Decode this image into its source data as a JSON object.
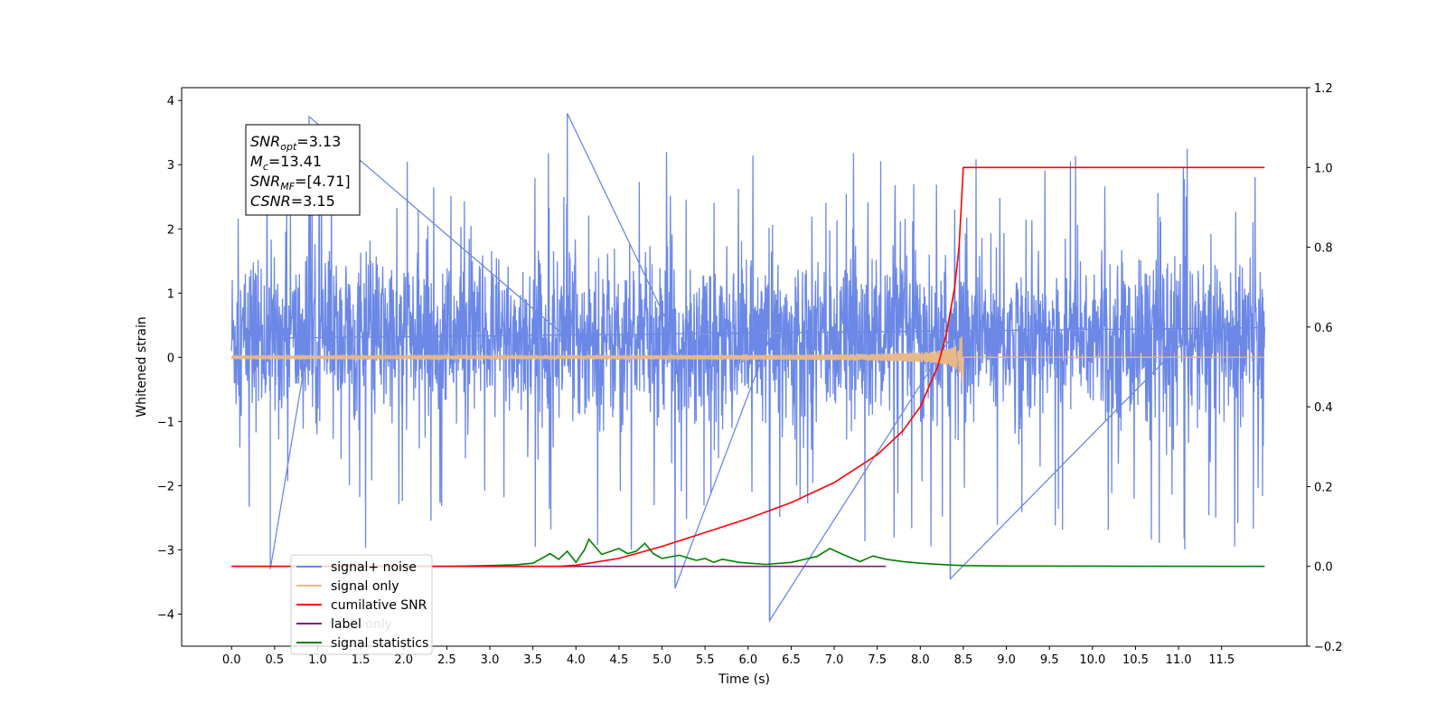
{
  "chart_data": {
    "type": "line",
    "title": "",
    "xlabel": "Time (s)",
    "ylabel": "Whitened strain",
    "y2label": "",
    "xlim": [
      -0.58,
      12.49
    ],
    "ylim": [
      -4.5,
      4.2
    ],
    "y2lim": [
      -0.2,
      1.2
    ],
    "x_ticks": [
      0.0,
      0.5,
      1.0,
      1.5,
      2.0,
      2.5,
      3.0,
      3.5,
      4.0,
      4.5,
      5.0,
      5.5,
      6.0,
      6.5,
      7.0,
      7.5,
      8.0,
      8.5,
      9.0,
      9.5,
      10.0,
      10.5,
      11.0,
      11.5
    ],
    "x_tick_labels": [
      "0.0",
      "0.5",
      "1.0",
      "1.5",
      "2.0",
      "2.5",
      "3.0",
      "3.5",
      "4.0",
      "4.5",
      "5.0",
      "5.5",
      "6.0",
      "6.5",
      "7.0",
      "7.5",
      "8.0",
      "8.5",
      "9.0",
      "9.5",
      "10.0",
      "10.5",
      "11.0",
      "11.5"
    ],
    "y_ticks": [
      -4,
      -3,
      -2,
      -1,
      0,
      1,
      2,
      3,
      4
    ],
    "y_tick_labels": [
      "−4",
      "−3",
      "−2",
      "−1",
      "0",
      "1",
      "2",
      "3",
      "4"
    ],
    "y2_ticks": [
      -0.2,
      0.0,
      0.2,
      0.4,
      0.6,
      0.8,
      1.0,
      1.2
    ],
    "y2_tick_labels": [
      "−0.2",
      "0.0",
      "0.2",
      "0.4",
      "0.6",
      "0.8",
      "1.0",
      "1.2"
    ],
    "grid": false,
    "legend_position": "lower-left",
    "series": [
      {
        "name": "signal+ noise",
        "color": "#6b88e6",
        "axis": "left",
        "description": "dense noise from t=0 to t=12",
        "x_range": [
          0,
          12
        ],
        "typical_envelope": [
          -1.6,
          2.4
        ],
        "peaks": [
          {
            "x": 0.45,
            "y": -3.3
          },
          {
            "x": 0.9,
            "y": 3.75
          },
          {
            "x": 3.9,
            "y": 3.8
          },
          {
            "x": 5.15,
            "y": -3.6
          },
          {
            "x": 6.25,
            "y": -4.1
          },
          {
            "x": 8.35,
            "y": -3.45
          },
          {
            "x": 11.1,
            "y": 3.25
          }
        ]
      },
      {
        "name": "signal only",
        "color": "#e8b888",
        "axis": "left",
        "description": "chirp signal growing in amplitude, ending at t=8.5",
        "x_range": [
          0,
          12
        ],
        "chirp_end": 8.5,
        "max_amplitude": 0.42
      },
      {
        "name": "cumilative SNR",
        "color": "#ff0000",
        "axis": "right",
        "x": [
          0.0,
          3.8,
          4.0,
          4.5,
          5.0,
          5.5,
          6.0,
          6.5,
          7.0,
          7.5,
          7.8,
          8.0,
          8.2,
          8.3,
          8.4,
          8.45,
          8.5,
          12.0
        ],
        "y": [
          0.0,
          0.0,
          0.003,
          0.02,
          0.05,
          0.085,
          0.12,
          0.16,
          0.21,
          0.28,
          0.34,
          0.4,
          0.5,
          0.58,
          0.7,
          0.8,
          1.0,
          1.0
        ]
      },
      {
        "name": "label",
        "color": "#7b1a7b",
        "axis": "right",
        "x": [
          0.7,
          7.6
        ],
        "y": [
          0.0,
          0.0
        ]
      },
      {
        "name": "signal statistics",
        "color": "#008000",
        "axis": "right",
        "x": [
          0.0,
          2.5,
          3.0,
          3.3,
          3.5,
          3.6,
          3.7,
          3.8,
          3.9,
          4.0,
          4.1,
          4.15,
          4.3,
          4.5,
          4.6,
          4.7,
          4.8,
          4.9,
          5.0,
          5.2,
          5.4,
          5.5,
          5.6,
          5.7,
          5.9,
          6.2,
          6.5,
          6.8,
          6.95,
          7.1,
          7.3,
          7.45,
          7.6,
          7.8,
          8.0,
          8.3,
          8.5,
          9.0,
          12.0
        ],
        "y": [
          0.0,
          0.0,
          0.002,
          0.004,
          0.008,
          0.02,
          0.032,
          0.018,
          0.038,
          0.01,
          0.042,
          0.068,
          0.03,
          0.045,
          0.032,
          0.038,
          0.058,
          0.032,
          0.02,
          0.028,
          0.015,
          0.02,
          0.01,
          0.018,
          0.01,
          0.005,
          0.01,
          0.025,
          0.045,
          0.03,
          0.012,
          0.026,
          0.018,
          0.012,
          0.008,
          0.004,
          0.002,
          0.001,
          0.0
        ]
      }
    ],
    "annotation": {
      "lines": [
        {
          "var": "SNR",
          "sub": "opt",
          "value": "=3.13"
        },
        {
          "var": "M",
          "sub": "c",
          "value": "=13.41"
        },
        {
          "var": "SNR",
          "sub": "MF",
          "value": "=[4.71]"
        },
        {
          "var": "CSNR",
          "sub": "",
          "value": "=3.15"
        }
      ]
    },
    "legend_overlap_text": [
      "signal only",
      "label only"
    ]
  }
}
